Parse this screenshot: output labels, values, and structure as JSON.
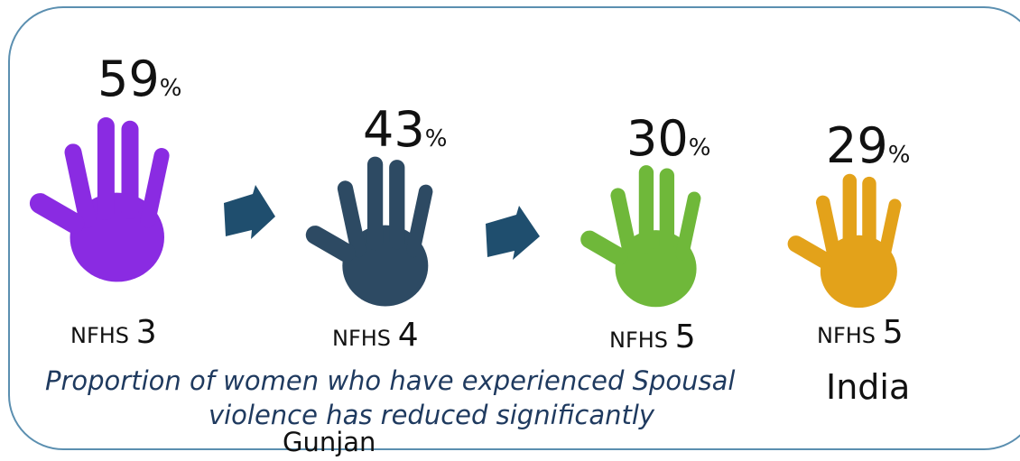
{
  "items": [
    {
      "value": 59,
      "unit": "%",
      "survey": "NFHS",
      "round": "3"
    },
    {
      "value": 43,
      "unit": "%",
      "survey": "NFHS",
      "round": "4"
    },
    {
      "value": 30,
      "unit": "%",
      "survey": "NFHS",
      "round": "5"
    },
    {
      "value": 29,
      "unit": "%",
      "survey": "NFHS",
      "round": "5",
      "region": "India"
    }
  ],
  "caption": [
    "Proportion of women who have experienced Spousal",
    "violence has reduced significantly"
  ],
  "author": "Gunjan"
}
